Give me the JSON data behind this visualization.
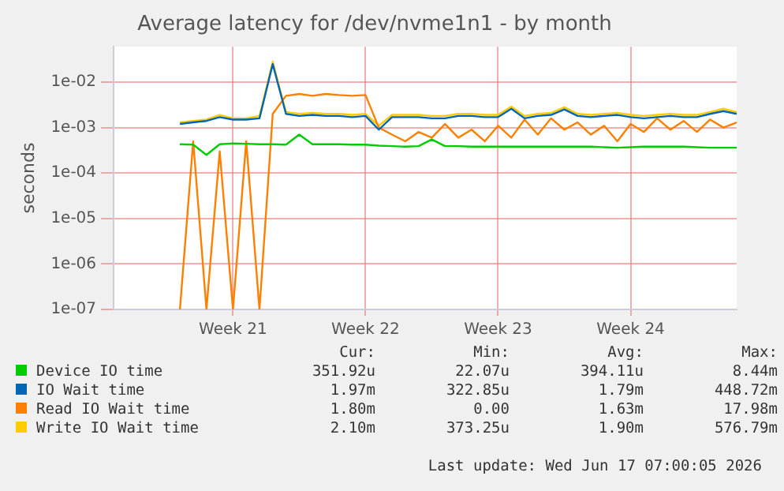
{
  "chart_data": {
    "type": "line",
    "title": "Average latency for /dev/nvme1n1 - by month",
    "ylabel": "seconds",
    "log": true,
    "grid": true,
    "legend": "bottom",
    "marker": "none",
    "categories": [
      null,
      null,
      null,
      null,
      null,
      null,
      null,
      null,
      null,
      "Week 21",
      null,
      null,
      null,
      null,
      null,
      null,
      null,
      null,
      null,
      "Week 22",
      null,
      null,
      null,
      null,
      null,
      null,
      null,
      null,
      null,
      "Week 23",
      null,
      null,
      null,
      null,
      null,
      null,
      null,
      null,
      null,
      "Week 24",
      null,
      null,
      null,
      null,
      null,
      null,
      null,
      null
    ],
    "ylim": [
      1e-07,
      0.06
    ],
    "yticks": [
      {
        "value": 1e-07,
        "label": "1e-07"
      },
      {
        "value": 1e-06,
        "label": "1e-06"
      },
      {
        "value": 1e-05,
        "label": "1e-05"
      },
      {
        "value": 0.0001,
        "label": "1e-04"
      },
      {
        "value": 0.001,
        "label": "1e-03"
      },
      {
        "value": 0.01,
        "label": "1e-02"
      }
    ],
    "series": [
      {
        "name": "Device IO time",
        "color": "#00cc00",
        "values": [
          null,
          null,
          null,
          null,
          null,
          0.00043,
          0.00042,
          0.00025,
          0.00043,
          0.00045,
          0.00044,
          0.00043,
          0.00043,
          0.00042,
          0.0007,
          0.00043,
          0.00043,
          0.00043,
          0.00042,
          0.00042,
          0.0004,
          0.00039,
          0.00038,
          0.00039,
          0.00055,
          0.00039,
          0.00039,
          0.00038,
          0.00038,
          0.00038,
          0.00038,
          0.00038,
          0.00038,
          0.00038,
          0.00038,
          0.00038,
          0.00038,
          0.00037,
          0.00036,
          0.00037,
          0.00038,
          0.00038,
          0.00038,
          0.00038,
          0.00037,
          0.00036,
          0.00036,
          0.00036
        ]
      },
      {
        "name": "IO Wait time",
        "color": "#0066b3",
        "values": [
          null,
          null,
          null,
          null,
          null,
          0.0012,
          0.0013,
          0.0014,
          0.0017,
          0.0015,
          0.0015,
          0.0016,
          0.025,
          0.002,
          0.0018,
          0.0019,
          0.0018,
          0.0018,
          0.0017,
          0.0018,
          0.0009,
          0.0017,
          0.0017,
          0.0017,
          0.0016,
          0.0016,
          0.0018,
          0.0018,
          0.0017,
          0.0017,
          0.0026,
          0.0016,
          0.0018,
          0.0019,
          0.0025,
          0.0018,
          0.0017,
          0.0018,
          0.0019,
          0.0017,
          0.0016,
          0.0017,
          0.0018,
          0.0017,
          0.0017,
          0.002,
          0.0023,
          0.002
        ]
      },
      {
        "name": "Read IO Wait time",
        "color": "#ff8000",
        "values": [
          null,
          null,
          null,
          null,
          null,
          1e-07,
          0.0005,
          1e-07,
          0.0003,
          1e-07,
          0.0005,
          1e-07,
          0.002,
          0.005,
          0.0055,
          0.005,
          0.0055,
          0.0052,
          0.005,
          0.0052,
          0.001,
          0.0007,
          0.0005,
          0.0008,
          0.0006,
          0.0012,
          0.0006,
          0.0009,
          0.0005,
          0.0011,
          0.0006,
          0.0015,
          0.0007,
          0.0016,
          0.0009,
          0.0013,
          0.0007,
          0.0011,
          0.0005,
          0.0012,
          0.0008,
          0.0016,
          0.0009,
          0.0014,
          0.0008,
          0.0015,
          0.001,
          0.0013
        ]
      },
      {
        "name": "Write IO Wait time",
        "color": "#ffcc00",
        "values": [
          null,
          null,
          null,
          null,
          null,
          0.0013,
          0.0014,
          0.0015,
          0.0019,
          0.0016,
          0.0016,
          0.0018,
          0.028,
          0.0022,
          0.002,
          0.0021,
          0.002,
          0.002,
          0.0019,
          0.002,
          0.0011,
          0.0019,
          0.0019,
          0.0019,
          0.0018,
          0.0018,
          0.002,
          0.002,
          0.0019,
          0.0019,
          0.0029,
          0.0018,
          0.002,
          0.0021,
          0.0028,
          0.002,
          0.0019,
          0.002,
          0.0021,
          0.0019,
          0.0018,
          0.0019,
          0.002,
          0.0019,
          0.0019,
          0.0022,
          0.0026,
          0.0022
        ]
      }
    ],
    "annotations": [
      "Cur:",
      "Min:",
      "Avg:",
      "Max:",
      "351.92u",
      "22.07u",
      "394.11u",
      "8.44m",
      "1.97m",
      "322.85u",
      "1.79m",
      "448.72m",
      "1.80m",
      "0.00",
      "1.63m",
      "17.98m",
      "2.10m",
      "373.25u",
      "1.90m",
      "576.79m",
      "Last update: Wed Jun 17 07:00:05 2026"
    ]
  }
}
